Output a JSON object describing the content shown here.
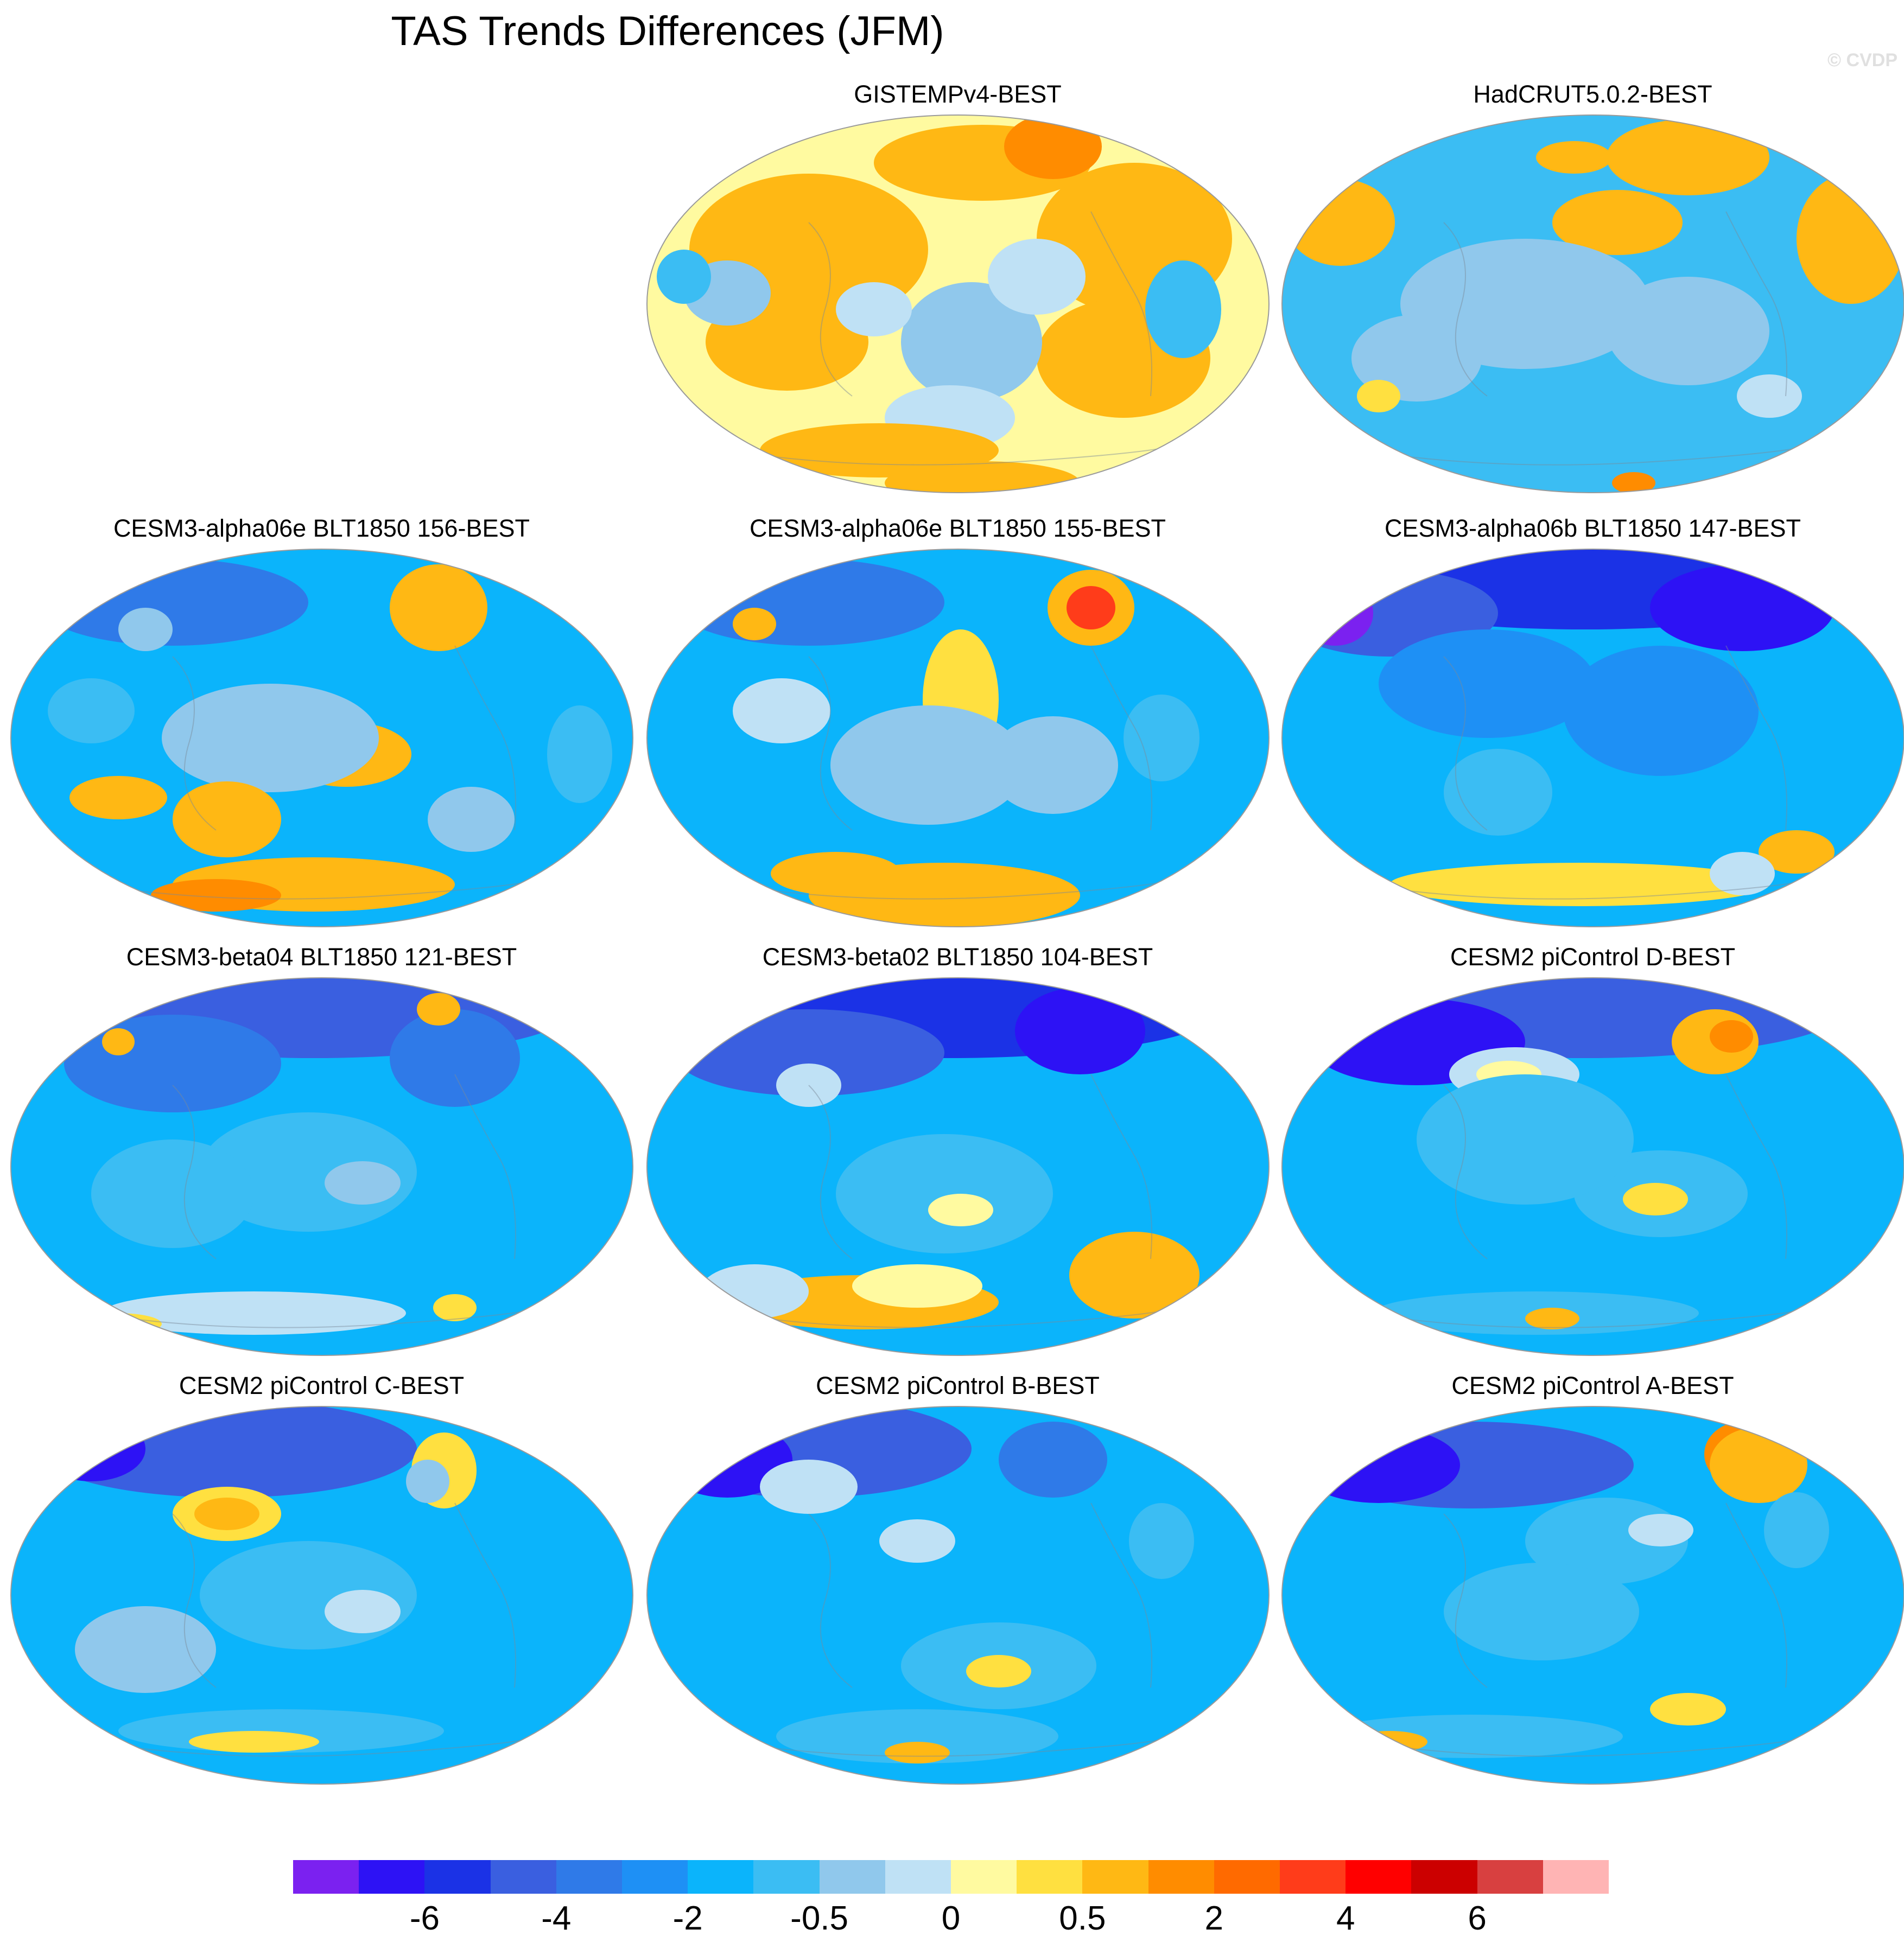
{
  "title": "TAS Trends Differences (JFM)",
  "credit": "© CVDP",
  "panels": [
    {
      "label": "GISTEMPv4-BEST",
      "style": "gistemp"
    },
    {
      "label": "HadCRUT5.0.2-BEST",
      "style": "hadcrut"
    },
    {
      "label": "CESM3-alpha06e BLT1850 156-BEST",
      "style": "alpha156"
    },
    {
      "label": "CESM3-alpha06e BLT1850 155-BEST",
      "style": "alpha155"
    },
    {
      "label": "CESM3-alpha06b BLT1850 147-BEST",
      "style": "alpha147"
    },
    {
      "label": "CESM3-beta04 BLT1850 121-BEST",
      "style": "beta04"
    },
    {
      "label": "CESM3-beta02 BLT1850 104-BEST",
      "style": "beta02"
    },
    {
      "label": "CESM2 piControl D-BEST",
      "style": "picD"
    },
    {
      "label": "CESM2 piControl C-BEST",
      "style": "picC"
    },
    {
      "label": "CESM2 piControl B-BEST",
      "style": "picB"
    },
    {
      "label": "CESM2 piControl A-BEST",
      "style": "picA"
    }
  ],
  "colorbar": {
    "colors": [
      "#7b21f0",
      "#2d12f5",
      "#1b32e6",
      "#3a5fe0",
      "#2f7ae8",
      "#1e90f5",
      "#0bb4fb",
      "#3bbdf3",
      "#90c8ec",
      "#bfe1f5",
      "#fffaa0",
      "#ffe040",
      "#ffb814",
      "#ff8c00",
      "#ff6a00",
      "#ff3c1a",
      "#ff0000",
      "#cc0000",
      "#d84040",
      "#ffb4b4"
    ],
    "labels": [
      "-6",
      "-4",
      "-2",
      "-0.5",
      "0",
      "0.5",
      "2",
      "4",
      "6"
    ]
  }
}
